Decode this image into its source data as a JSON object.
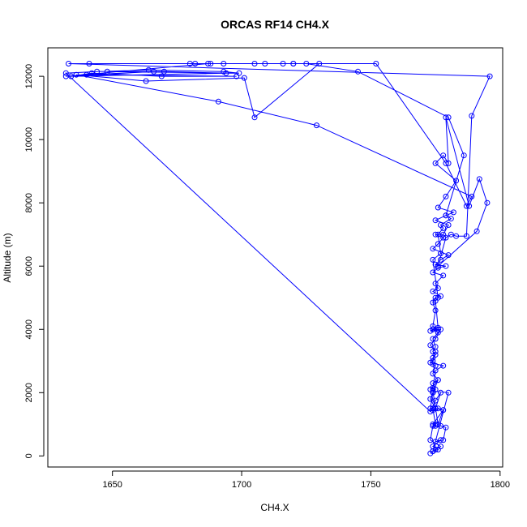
{
  "chart_data": {
    "type": "line",
    "title": "ORCAS RF14 CH4.X",
    "xlabel": "CH4.X",
    "ylabel": "Altitude (m)",
    "xlim": [
      1625,
      1801
    ],
    "ylim": [
      -350,
      12900
    ],
    "xticks": [
      1650,
      1700,
      1750,
      1800
    ],
    "yticks": [
      0,
      2000,
      4000,
      6000,
      8000,
      10000,
      12000
    ],
    "grid": false,
    "legend": "none",
    "markers": "open-circle",
    "color": "#0000ff",
    "series": [
      {
        "x": [
          1773,
          1774,
          1775,
          1777,
          1773,
          1774,
          1775,
          1774,
          1773,
          1774,
          1776,
          1773,
          1774,
          1775,
          1778,
          1773,
          1774,
          1775,
          1773,
          1775,
          1777,
          1773,
          1774,
          1776,
          1774,
          1775,
          1774,
          1775,
          1777,
          1774,
          1776,
          1775,
          1778,
          1774,
          1776,
          1779,
          1775,
          1777,
          1780,
          1774,
          1776,
          1778,
          1775,
          1778,
          1780,
          1775,
          1779,
          1782,
          1776,
          1779,
          1783,
          1775,
          1778,
          1780,
          1779,
          1788,
          1792,
          1795,
          1791,
          1776,
          1779,
          1781,
          1783,
          1787,
          1789,
          1796,
          1633,
          1680,
          1720,
          1752,
          1779,
          1787,
          1789,
          1729,
          1691,
          1636,
          1663,
          1701,
          1705,
          1730,
          1641,
          1682,
          1725,
          1745,
          1780,
          1786,
          1779,
          1781,
          1777,
          1778,
          1776,
          1777,
          1774,
          1776,
          1775,
          1776,
          1774,
          1776,
          1774,
          1775,
          1774,
          1775,
          1774,
          1774,
          1775,
          1774,
          1776,
          1774,
          1775,
          1774,
          1773,
          1775,
          1774,
          1776,
          1778,
          1774,
          1775,
          1777,
          1779,
          1778,
          1775,
          1777,
          1774,
          1776,
          1774,
          1780,
          1774,
          1776,
          1778,
          1775,
          1777,
          1775,
          1773,
          1632,
          1644,
          1664,
          1693,
          1699,
          1648,
          1670,
          1694,
          1634,
          1642,
          1669,
          1698,
          1640,
          1666,
          1632,
          1687,
          1720,
          1709,
          1688,
          1693,
          1705,
          1716
        ],
        "y": [
          80,
          150,
          200,
          300,
          500,
          950,
          1000,
          1500,
          1500,
          2000,
          2400,
          2100,
          2150,
          2700,
          2850,
          2950,
          3000,
          3300,
          3500,
          3700,
          4000,
          3950,
          4000,
          4000,
          4100,
          4600,
          4850,
          5000,
          5050,
          5200,
          5300,
          5450,
          5700,
          5800,
          5950,
          6000,
          6050,
          6200,
          6350,
          6550,
          6700,
          6900,
          7000,
          7000,
          7300,
          7450,
          7600,
          7700,
          7850,
          8200,
          8700,
          9250,
          9500,
          9250,
          10700,
          7900,
          8750,
          8000,
          7100,
          6000,
          6900,
          7000,
          6950,
          6950,
          10750,
          12000,
          12400,
          12400,
          12400,
          12400,
          9250,
          7900,
          8200,
          10450,
          11200,
          12050,
          11850,
          11950,
          10700,
          12400,
          12400,
          12400,
          12400,
          12150,
          10700,
          9500,
          7600,
          7500,
          7300,
          7200,
          7000,
          6400,
          6200,
          5000,
          4900,
          4050,
          4000,
          3900,
          3700,
          3450,
          3300,
          3200,
          3100,
          2900,
          2850,
          2600,
          2400,
          2300,
          2100,
          2000,
          1800,
          1500,
          1450,
          1500,
          1450,
          1000,
          950,
          950,
          900,
          500,
          450,
          500,
          300,
          200,
          150,
          2000,
          2050,
          1000,
          1450,
          1500,
          2000,
          1750,
          1400,
          12100,
          12150,
          12200,
          12150,
          12100,
          12150,
          12150,
          12100,
          12000,
          12100,
          12000,
          12000,
          12050,
          12150,
          12000,
          12400,
          12400,
          12400,
          12400,
          12400,
          12400,
          12400
        ]
      }
    ]
  }
}
